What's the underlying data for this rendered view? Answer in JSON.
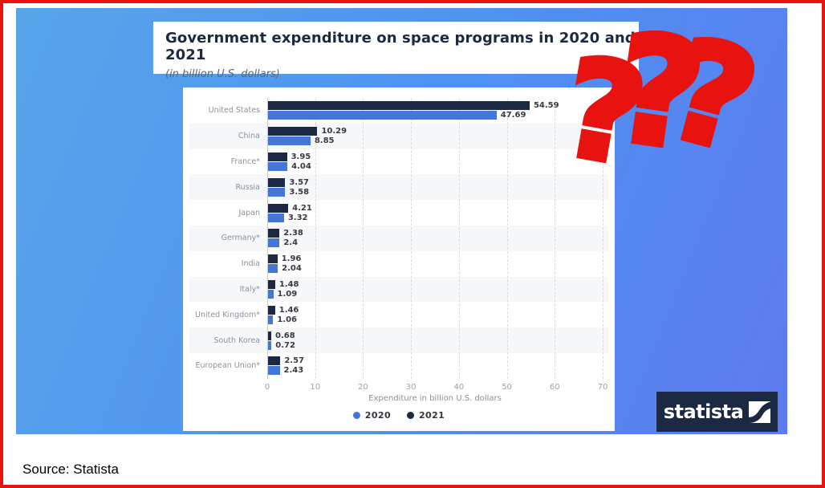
{
  "frame": {
    "border_color": "#e8120e",
    "source_text": "Source: Statista"
  },
  "header": {
    "title": "Government expenditure on space programs in 2020 and 2021",
    "subtitle": "(in billion U.S. dollars)"
  },
  "chart_data": {
    "type": "bar",
    "orientation": "horizontal",
    "title": "Government expenditure on space programs in 2020 and 2021",
    "subtitle": "(in billion U.S. dollars)",
    "xlabel": "Expenditure in billion U.S. dollars",
    "categories": [
      "United States",
      "China",
      "France*",
      "Russia",
      "Japan",
      "Germany*",
      "India",
      "Italy*",
      "United Kingdom*",
      "South Korea",
      "European Union*"
    ],
    "series": [
      {
        "name": "2021",
        "color": "#1b2a42",
        "values": [
          54.59,
          10.29,
          3.95,
          3.57,
          4.21,
          2.38,
          1.96,
          1.48,
          1.46,
          0.68,
          2.57
        ],
        "labels": [
          "54.59",
          "10.29",
          "3.95",
          "3.57",
          "4.21",
          "2.38",
          "1.96",
          "1.48",
          "1.46",
          "0.68",
          "2.57"
        ]
      },
      {
        "name": "2020",
        "color": "#4575da",
        "values": [
          47.69,
          8.85,
          4.04,
          3.58,
          3.32,
          2.4,
          2.04,
          1.09,
          1.06,
          0.72,
          2.43
        ],
        "labels": [
          "47.69",
          "8.85",
          "4.04",
          "3.58",
          "3.32",
          "2.4",
          "2.04",
          "1.09",
          "1.06",
          "0.72",
          "2.43"
        ]
      }
    ],
    "xlim": [
      0,
      70
    ],
    "xticks": [
      0,
      10,
      20,
      30,
      40,
      50,
      60,
      70
    ],
    "grid": true,
    "row_stripes": true,
    "legend_position": "bottom"
  },
  "legend": [
    {
      "label": "2020",
      "color": "#4575da"
    },
    {
      "label": "2021",
      "color": "#1b2a42"
    }
  ],
  "branding": {
    "logo_text": "statista",
    "logo_bg": "#1b2a42"
  },
  "annotations": {
    "color": "#e8120e",
    "marks": [
      "?",
      "?",
      "?"
    ]
  }
}
